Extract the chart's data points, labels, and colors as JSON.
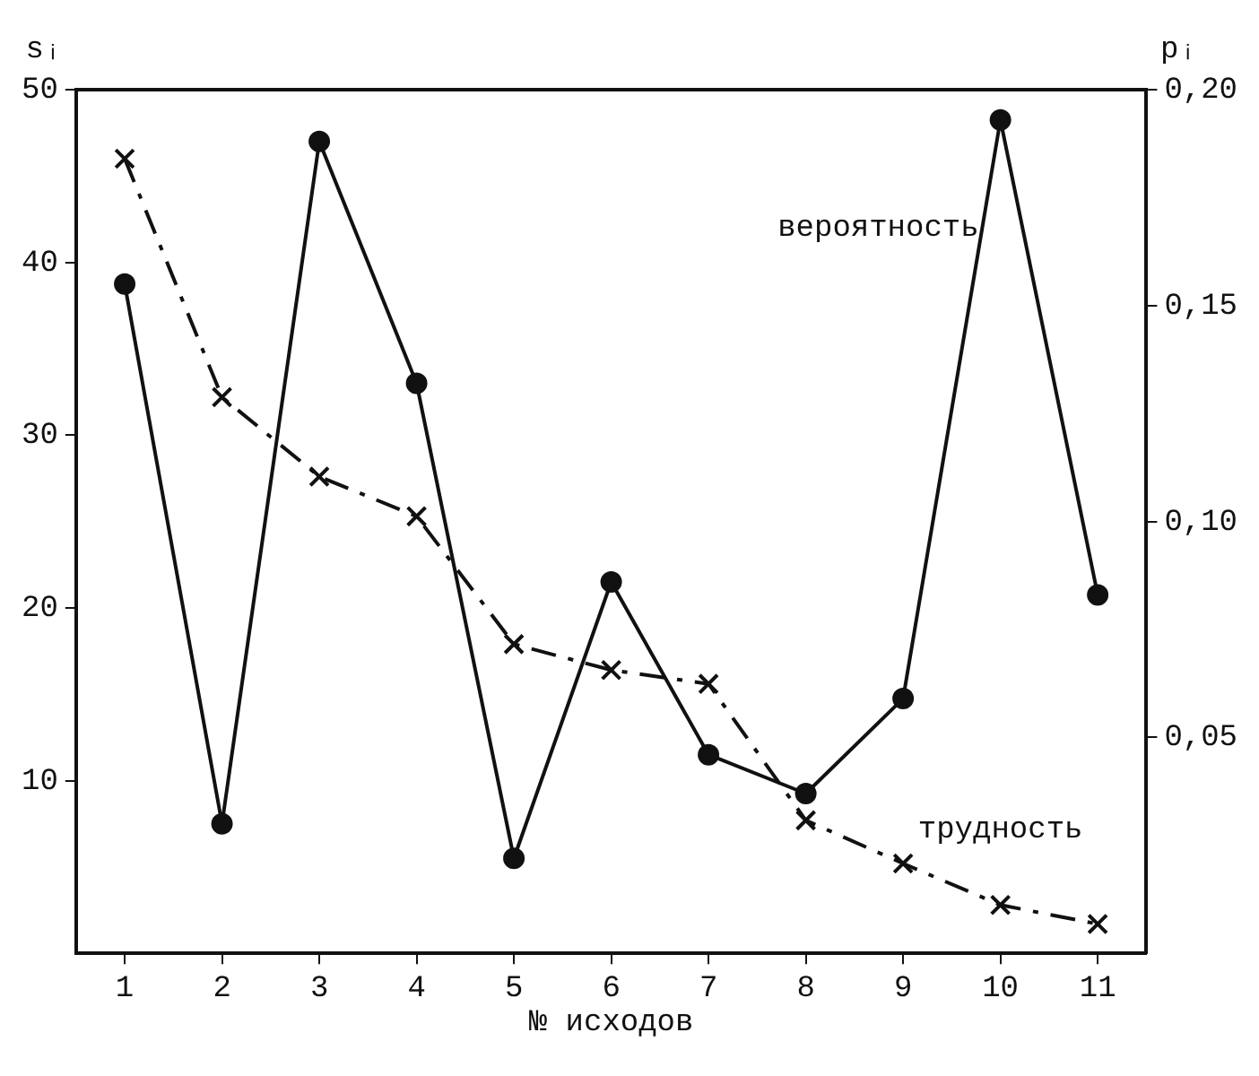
{
  "chart_data": {
    "type": "line",
    "xlabel": "№ исходов",
    "ylabel": "sᵢ",
    "y2label": "pᵢ",
    "categories": [
      "1",
      "2",
      "3",
      "4",
      "5",
      "6",
      "7",
      "8",
      "9",
      "10",
      "11"
    ],
    "series": [
      {
        "name": "вероятность",
        "color": "#111111",
        "axis": "y2",
        "marker": "circle",
        "line_style": "solid",
        "values": [
          0.155,
          0.03,
          0.188,
          0.132,
          0.022,
          0.086,
          0.046,
          0.037,
          0.059,
          0.193,
          0.083
        ]
      },
      {
        "name": "трудность",
        "color": "#111111",
        "axis": "y",
        "marker": "cross",
        "line_style": "dashed",
        "values": [
          46.0,
          32.2,
          27.6,
          25.3,
          17.9,
          16.4,
          15.6,
          7.7,
          5.2,
          2.8,
          1.7
        ]
      }
    ],
    "ylim": [
      0,
      50
    ],
    "yticks": [
      10,
      20,
      30,
      40,
      50
    ],
    "y2lim": [
      0,
      0.2
    ],
    "y2ticks": [
      {
        "value": 0.05,
        "label": "0,05"
      },
      {
        "value": 0.1,
        "label": "0,10"
      },
      {
        "value": 0.15,
        "label": "0,15"
      },
      {
        "value": 0.2,
        "label": "0,20"
      }
    ],
    "grid": false,
    "legend": false
  }
}
